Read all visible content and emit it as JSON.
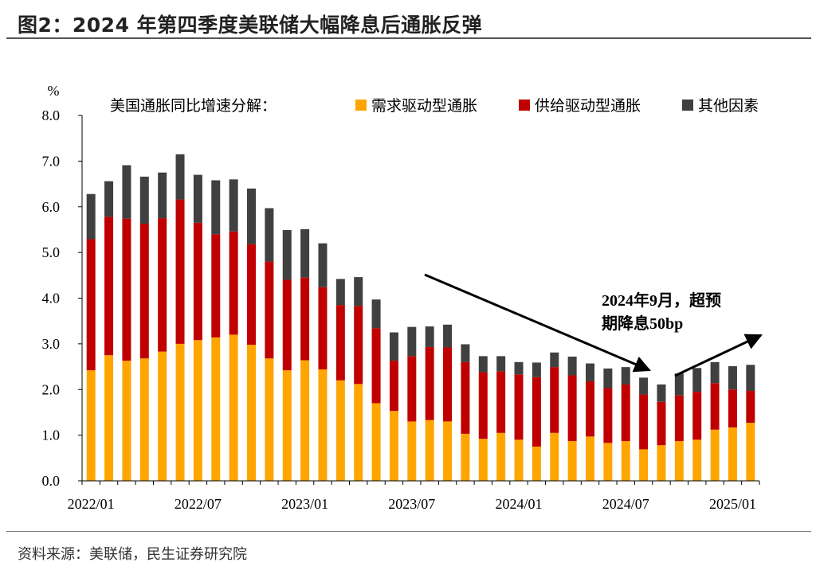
{
  "page": {
    "title": "图2：2024 年第四季度美联储大幅降息后通胀反弹",
    "source": "资料来源：美联储，民生证券研究院"
  },
  "chart_data": {
    "type": "bar",
    "stacked": true,
    "title": "美国通胀同比增速分解：",
    "ylabel": "%",
    "ylim": [
      0,
      8
    ],
    "yticks": [
      "0.0",
      "1.0",
      "2.0",
      "3.0",
      "4.0",
      "5.0",
      "6.0",
      "7.0",
      "8.0"
    ],
    "xtick_labels": [
      {
        "index": 0,
        "label": "2022/01"
      },
      {
        "index": 6,
        "label": "2022/07"
      },
      {
        "index": 12,
        "label": "2023/01"
      },
      {
        "index": 18,
        "label": "2023/07"
      },
      {
        "index": 24,
        "label": "2024/01"
      },
      {
        "index": 30,
        "label": "2024/07"
      },
      {
        "index": 36,
        "label": "2025/01"
      }
    ],
    "categories": [
      "2022/01",
      "2022/02",
      "2022/03",
      "2022/04",
      "2022/05",
      "2022/06",
      "2022/07",
      "2022/08",
      "2022/09",
      "2022/10",
      "2022/11",
      "2022/12",
      "2023/01",
      "2023/02",
      "2023/03",
      "2023/04",
      "2023/05",
      "2023/06",
      "2023/07",
      "2023/08",
      "2023/09",
      "2023/10",
      "2023/11",
      "2023/12",
      "2024/01",
      "2024/02",
      "2024/03",
      "2024/04",
      "2024/05",
      "2024/06",
      "2024/07",
      "2024/08",
      "2024/09",
      "2024/10",
      "2024/11",
      "2024/12",
      "2025/01",
      "2025/02"
    ],
    "series": [
      {
        "name": "需求驱动型通胀",
        "color": "#FFA500",
        "values": [
          2.42,
          2.75,
          2.63,
          2.68,
          2.83,
          3.0,
          3.08,
          3.14,
          3.2,
          2.98,
          2.68,
          2.42,
          2.64,
          2.44,
          2.2,
          2.12,
          1.7,
          1.53,
          1.3,
          1.33,
          1.3,
          1.03,
          0.92,
          1.05,
          0.9,
          0.75,
          1.05,
          0.87,
          0.97,
          0.83,
          0.87,
          0.69,
          0.78,
          0.87,
          0.9,
          1.12,
          1.17,
          1.27
        ]
      },
      {
        "name": "供给驱动型通胀",
        "color": "#C00000",
        "values": [
          2.87,
          3.03,
          3.11,
          2.95,
          2.92,
          3.16,
          2.57,
          2.26,
          2.26,
          2.2,
          2.12,
          1.98,
          1.81,
          1.8,
          1.65,
          1.71,
          1.64,
          1.1,
          1.43,
          1.6,
          1.62,
          1.57,
          1.46,
          1.35,
          1.43,
          1.52,
          1.44,
          1.44,
          1.21,
          1.2,
          1.24,
          1.2,
          0.95,
          1.0,
          1.05,
          1.02,
          0.83,
          0.7
        ]
      },
      {
        "name": "其他因素",
        "color": "#404040",
        "values": [
          0.99,
          0.78,
          1.17,
          1.03,
          1.0,
          0.99,
          1.05,
          1.18,
          1.14,
          1.22,
          1.17,
          1.09,
          1.06,
          0.96,
          0.57,
          0.63,
          0.63,
          0.62,
          0.64,
          0.45,
          0.5,
          0.39,
          0.35,
          0.33,
          0.27,
          0.32,
          0.32,
          0.41,
          0.39,
          0.43,
          0.38,
          0.37,
          0.38,
          0.48,
          0.52,
          0.46,
          0.51,
          0.57
        ]
      }
    ],
    "annotations": {
      "line1": "2024年9月，超预",
      "line2": "期降息50bp"
    }
  }
}
